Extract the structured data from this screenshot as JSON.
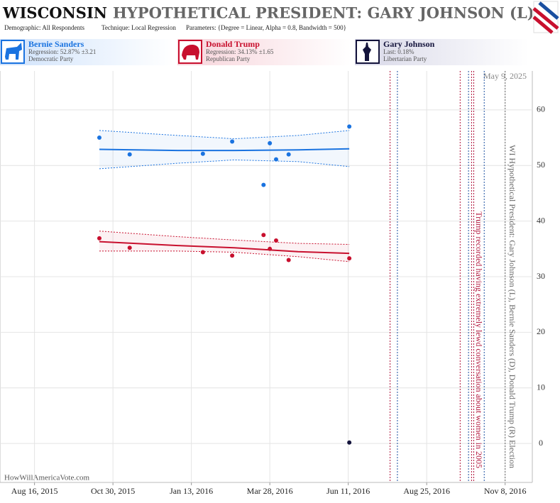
{
  "chart_data": {
    "type": "scatter",
    "title_state": "WISCONSIN",
    "title": "HYPOTHETICAL PRESIDENT: GARY JOHNSON (L)",
    "demographic": "Demographic: All Respondents",
    "technique": "Technique: Local Regression",
    "parameters": "Parameters: {Degree = Linear, Alpha = 0.8, Bandwidth = 500}",
    "date_stamp": "May 9, 2025",
    "source": "HowWillAmericaVote.com",
    "xlim": [
      "2015-07-14",
      "2016-12-04"
    ],
    "ylim": [
      -7,
      67
    ],
    "yticks": [
      0,
      10,
      20,
      30,
      40,
      50,
      60
    ],
    "xticks": [
      {
        "value": "2015-08-16",
        "label": "Aug 16, 2015"
      },
      {
        "value": "2015-10-30",
        "label": "Oct 30, 2015"
      },
      {
        "value": "2016-01-13",
        "label": "Jan 13, 2016"
      },
      {
        "value": "2016-03-28",
        "label": "Mar 28, 2016"
      },
      {
        "value": "2016-06-11",
        "label": "Jun 11, 2016"
      },
      {
        "value": "2016-08-25",
        "label": "Aug 25, 2016"
      },
      {
        "value": "2016-11-08",
        "label": "Nov 8, 2016"
      }
    ],
    "grid": true,
    "series": [
      {
        "name": "Bernie Sanders",
        "stat": "Regression: 52.87% ±3.21",
        "party": "Democratic Party",
        "color": "#1a73e0",
        "x": [
          "2015-10-17",
          "2015-11-15",
          "2016-01-24",
          "2016-02-21",
          "2016-03-22",
          "2016-03-28",
          "2016-04-03",
          "2016-04-15",
          "2016-06-12"
        ],
        "values": [
          55.0,
          52.0,
          52.1,
          54.3,
          46.5,
          54.0,
          51.1,
          52.0,
          57.0
        ],
        "fit": {
          "x": [
            "2015-10-17",
            "2015-12-31",
            "2016-02-23",
            "2016-04-24",
            "2016-06-12"
          ],
          "values": [
            52.9,
            52.7,
            52.7,
            52.8,
            53.0
          ],
          "upper": [
            56.3,
            55.4,
            54.8,
            55.4,
            56.3
          ],
          "lower": [
            49.4,
            50.4,
            51.0,
            50.7,
            49.8
          ]
        }
      },
      {
        "name": "Donald Trump",
        "stat": "Regression: 34.13% ±1.65",
        "party": "Republican Party",
        "color": "#c8102e",
        "x": [
          "2015-10-17",
          "2015-11-15",
          "2016-01-24",
          "2016-02-21",
          "2016-03-22",
          "2016-03-28",
          "2016-04-03",
          "2016-04-15",
          "2016-06-12"
        ],
        "values": [
          36.9,
          35.2,
          34.4,
          33.8,
          37.5,
          35.0,
          36.5,
          33.0,
          33.3
        ],
        "fit": {
          "x": [
            "2015-10-17",
            "2015-12-31",
            "2016-02-23",
            "2016-04-24",
            "2016-06-12"
          ],
          "values": [
            36.3,
            35.6,
            35.2,
            34.5,
            34.2
          ],
          "upper": [
            38.2,
            37.2,
            36.6,
            36.0,
            35.8
          ],
          "lower": [
            34.6,
            34.6,
            34.4,
            33.6,
            32.7
          ]
        }
      },
      {
        "name": "Gary Johnson",
        "stat": "Last: 0.18%",
        "party": "Libertarian Party",
        "color": "#14143c",
        "x": [
          "2016-06-12"
        ],
        "values": [
          0.18
        ]
      }
    ],
    "events": [
      {
        "date": "2016-07-21",
        "color": "#b0123a"
      },
      {
        "date": "2016-07-28",
        "color": "#1a4fa0"
      },
      {
        "date": "2016-09-26",
        "color": "#b0123a"
      },
      {
        "date": "2016-10-04",
        "color": "#1a4fa0"
      },
      {
        "date": "2016-10-07",
        "color": "#b0123a",
        "label": "Trump recorded having extremely lewd conversation about women in 2005"
      },
      {
        "date": "2016-10-09",
        "color": "#b0123a"
      },
      {
        "date": "2016-10-19",
        "color": "#1a4fa0"
      },
      {
        "date": "2016-11-08",
        "color": "#666666",
        "label": "WI Hypothetical President: Gary Johnson (L), Bernie Sanders (D), Donald Trump (R) Election"
      }
    ]
  }
}
